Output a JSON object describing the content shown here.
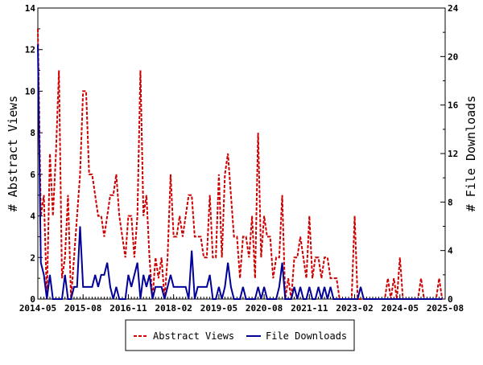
{
  "chart_data": {
    "type": "line",
    "title": "",
    "xlabel": "",
    "ylabel_left": "# Abstract Views",
    "ylabel_right": "# File Downloads",
    "x_range": [
      "2014-05",
      "2025-08"
    ],
    "x_ticks": [
      "2014-05",
      "2015-08",
      "2016-11",
      "2018-02",
      "2019-05",
      "2020-08",
      "2021-11",
      "2023-02",
      "2024-05",
      "2025-08"
    ],
    "y_left_range": [
      0,
      14
    ],
    "y_left_ticks": [
      0,
      2,
      4,
      6,
      8,
      10,
      12,
      14
    ],
    "y_right_range": [
      0,
      24
    ],
    "y_right_ticks": [
      0,
      4,
      8,
      12,
      16,
      20,
      24
    ],
    "grid": false,
    "legend_position": "bottom-center",
    "series": [
      {
        "name": "Abstract Views",
        "axis": "left",
        "color": "#cc0000",
        "style": "dashed",
        "points": [
          [
            "2014-05",
            13
          ],
          [
            "2014-06",
            4
          ],
          [
            "2014-07",
            5
          ],
          [
            "2014-08",
            0
          ],
          [
            "2014-09",
            7
          ],
          [
            "2014-10",
            4
          ],
          [
            "2014-11",
            7
          ],
          [
            "2014-12",
            11
          ],
          [
            "2015-01",
            1
          ],
          [
            "2015-02",
            2
          ],
          [
            "2015-03",
            5
          ],
          [
            "2015-04",
            0
          ],
          [
            "2015-05",
            2
          ],
          [
            "2015-06",
            4
          ],
          [
            "2015-07",
            6
          ],
          [
            "2015-08",
            10
          ],
          [
            "2015-09",
            10
          ],
          [
            "2015-10",
            6
          ],
          [
            "2015-11",
            6
          ],
          [
            "2015-12",
            5
          ],
          [
            "2016-01",
            4
          ],
          [
            "2016-02",
            4
          ],
          [
            "2016-03",
            3
          ],
          [
            "2016-04",
            4
          ],
          [
            "2016-05",
            5
          ],
          [
            "2016-06",
            5
          ],
          [
            "2016-07",
            6
          ],
          [
            "2016-08",
            4
          ],
          [
            "2016-09",
            3
          ],
          [
            "2016-10",
            2
          ],
          [
            "2016-11",
            4
          ],
          [
            "2016-12",
            4
          ],
          [
            "2017-01",
            2
          ],
          [
            "2017-02",
            4
          ],
          [
            "2017-03",
            11
          ],
          [
            "2017-04",
            4
          ],
          [
            "2017-05",
            5
          ],
          [
            "2017-06",
            2
          ],
          [
            "2017-07",
            0
          ],
          [
            "2017-08",
            2
          ],
          [
            "2017-09",
            1
          ],
          [
            "2017-10",
            2
          ],
          [
            "2017-11",
            0
          ],
          [
            "2017-12",
            2
          ],
          [
            "2018-01",
            6
          ],
          [
            "2018-02",
            3
          ],
          [
            "2018-03",
            3
          ],
          [
            "2018-04",
            4
          ],
          [
            "2018-05",
            3
          ],
          [
            "2018-06",
            4
          ],
          [
            "2018-07",
            5
          ],
          [
            "2018-08",
            5
          ],
          [
            "2018-09",
            3
          ],
          [
            "2018-10",
            3
          ],
          [
            "2018-11",
            3
          ],
          [
            "2018-12",
            2
          ],
          [
            "2019-01",
            2
          ],
          [
            "2019-02",
            5
          ],
          [
            "2019-03",
            2
          ],
          [
            "2019-04",
            2
          ],
          [
            "2019-05",
            6
          ],
          [
            "2019-06",
            2
          ],
          [
            "2019-07",
            6
          ],
          [
            "2019-08",
            7
          ],
          [
            "2019-09",
            5
          ],
          [
            "2019-10",
            3
          ],
          [
            "2019-11",
            3
          ],
          [
            "2019-12",
            1
          ],
          [
            "2020-01",
            3
          ],
          [
            "2020-02",
            3
          ],
          [
            "2020-03",
            2
          ],
          [
            "2020-04",
            4
          ],
          [
            "2020-05",
            1
          ],
          [
            "2020-06",
            8
          ],
          [
            "2020-07",
            2
          ],
          [
            "2020-08",
            4
          ],
          [
            "2020-09",
            3
          ],
          [
            "2020-10",
            3
          ],
          [
            "2020-11",
            1
          ],
          [
            "2020-12",
            2
          ],
          [
            "2021-01",
            2
          ],
          [
            "2021-02",
            5
          ],
          [
            "2021-03",
            0
          ],
          [
            "2021-04",
            1
          ],
          [
            "2021-05",
            0
          ],
          [
            "2021-06",
            2
          ],
          [
            "2021-07",
            2
          ],
          [
            "2021-08",
            3
          ],
          [
            "2021-09",
            2
          ],
          [
            "2021-10",
            1
          ],
          [
            "2021-11",
            4
          ],
          [
            "2021-12",
            1
          ],
          [
            "2022-01",
            2
          ],
          [
            "2022-02",
            2
          ],
          [
            "2022-03",
            1
          ],
          [
            "2022-04",
            2
          ],
          [
            "2022-05",
            2
          ],
          [
            "2022-06",
            1
          ],
          [
            "2022-07",
            1
          ],
          [
            "2022-08",
            1
          ],
          [
            "2022-09",
            0
          ],
          [
            "2022-10",
            0
          ],
          [
            "2022-11",
            0
          ],
          [
            "2022-12",
            0
          ],
          [
            "2023-01",
            0
          ],
          [
            "2023-02",
            4
          ],
          [
            "2023-03",
            0
          ],
          [
            "2023-04",
            0
          ],
          [
            "2023-05",
            0
          ],
          [
            "2023-06",
            0
          ],
          [
            "2023-07",
            0
          ],
          [
            "2023-08",
            0
          ],
          [
            "2023-09",
            0
          ],
          [
            "2023-10",
            0
          ],
          [
            "2023-11",
            0
          ],
          [
            "2023-12",
            0
          ],
          [
            "2024-01",
            1
          ],
          [
            "2024-02",
            0
          ],
          [
            "2024-03",
            1
          ],
          [
            "2024-04",
            0
          ],
          [
            "2024-05",
            2
          ],
          [
            "2024-06",
            0
          ],
          [
            "2024-07",
            0
          ],
          [
            "2024-08",
            0
          ],
          [
            "2024-09",
            0
          ],
          [
            "2024-10",
            0
          ],
          [
            "2024-11",
            0
          ],
          [
            "2024-12",
            1
          ],
          [
            "2025-01",
            0
          ],
          [
            "2025-02",
            0
          ],
          [
            "2025-03",
            0
          ],
          [
            "2025-04",
            0
          ],
          [
            "2025-05",
            0
          ],
          [
            "2025-06",
            1
          ],
          [
            "2025-07",
            0
          ]
        ]
      },
      {
        "name": "File Downloads",
        "axis": "right",
        "color": "#000099",
        "style": "solid",
        "points": [
          [
            "2014-05",
            21
          ],
          [
            "2014-06",
            3
          ],
          [
            "2014-07",
            2
          ],
          [
            "2014-08",
            0
          ],
          [
            "2014-09",
            2
          ],
          [
            "2014-10",
            0
          ],
          [
            "2014-11",
            0
          ],
          [
            "2014-12",
            0
          ],
          [
            "2015-01",
            0
          ],
          [
            "2015-02",
            2
          ],
          [
            "2015-03",
            0
          ],
          [
            "2015-04",
            0
          ],
          [
            "2015-05",
            1
          ],
          [
            "2015-06",
            1
          ],
          [
            "2015-07",
            6
          ],
          [
            "2015-08",
            1
          ],
          [
            "2015-09",
            1
          ],
          [
            "2015-10",
            1
          ],
          [
            "2015-11",
            1
          ],
          [
            "2015-12",
            2
          ],
          [
            "2016-01",
            1
          ],
          [
            "2016-02",
            2
          ],
          [
            "2016-03",
            2
          ],
          [
            "2016-04",
            3
          ],
          [
            "2016-05",
            1
          ],
          [
            "2016-06",
            0
          ],
          [
            "2016-07",
            1
          ],
          [
            "2016-08",
            0
          ],
          [
            "2016-09",
            0
          ],
          [
            "2016-10",
            0
          ],
          [
            "2016-11",
            2
          ],
          [
            "2016-12",
            1
          ],
          [
            "2017-01",
            2
          ],
          [
            "2017-02",
            3
          ],
          [
            "2017-03",
            0
          ],
          [
            "2017-04",
            2
          ],
          [
            "2017-05",
            1
          ],
          [
            "2017-06",
            2
          ],
          [
            "2017-07",
            0
          ],
          [
            "2017-08",
            1
          ],
          [
            "2017-09",
            1
          ],
          [
            "2017-10",
            1
          ],
          [
            "2017-11",
            0
          ],
          [
            "2017-12",
            1
          ],
          [
            "2018-01",
            2
          ],
          [
            "2018-02",
            1
          ],
          [
            "2018-03",
            1
          ],
          [
            "2018-04",
            1
          ],
          [
            "2018-05",
            1
          ],
          [
            "2018-06",
            1
          ],
          [
            "2018-07",
            0
          ],
          [
            "2018-08",
            4
          ],
          [
            "2018-09",
            0
          ],
          [
            "2018-10",
            1
          ],
          [
            "2018-11",
            1
          ],
          [
            "2018-12",
            1
          ],
          [
            "2019-01",
            1
          ],
          [
            "2019-02",
            2
          ],
          [
            "2019-03",
            0
          ],
          [
            "2019-04",
            0
          ],
          [
            "2019-05",
            1
          ],
          [
            "2019-06",
            0
          ],
          [
            "2019-07",
            1
          ],
          [
            "2019-08",
            3
          ],
          [
            "2019-09",
            1
          ],
          [
            "2019-10",
            0
          ],
          [
            "2019-11",
            0
          ],
          [
            "2019-12",
            0
          ],
          [
            "2020-01",
            1
          ],
          [
            "2020-02",
            0
          ],
          [
            "2020-03",
            0
          ],
          [
            "2020-04",
            0
          ],
          [
            "2020-05",
            0
          ],
          [
            "2020-06",
            1
          ],
          [
            "2020-07",
            0
          ],
          [
            "2020-08",
            1
          ],
          [
            "2020-09",
            0
          ],
          [
            "2020-10",
            0
          ],
          [
            "2020-11",
            0
          ],
          [
            "2020-12",
            0
          ],
          [
            "2021-01",
            1
          ],
          [
            "2021-02",
            3
          ],
          [
            "2021-03",
            0
          ],
          [
            "2021-04",
            0
          ],
          [
            "2021-05",
            0
          ],
          [
            "2021-06",
            1
          ],
          [
            "2021-07",
            0
          ],
          [
            "2021-08",
            1
          ],
          [
            "2021-09",
            0
          ],
          [
            "2021-10",
            0
          ],
          [
            "2021-11",
            1
          ],
          [
            "2021-12",
            0
          ],
          [
            "2022-01",
            0
          ],
          [
            "2022-02",
            1
          ],
          [
            "2022-03",
            0
          ],
          [
            "2022-04",
            1
          ],
          [
            "2022-05",
            0
          ],
          [
            "2022-06",
            1
          ],
          [
            "2022-07",
            0
          ],
          [
            "2022-08",
            0
          ],
          [
            "2022-09",
            0
          ],
          [
            "2022-10",
            0
          ],
          [
            "2022-11",
            0
          ],
          [
            "2022-12",
            0
          ],
          [
            "2023-01",
            0
          ],
          [
            "2023-02",
            0
          ],
          [
            "2023-03",
            0
          ],
          [
            "2023-04",
            1
          ],
          [
            "2023-05",
            0
          ],
          [
            "2023-06",
            0
          ],
          [
            "2023-07",
            0
          ],
          [
            "2023-08",
            0
          ],
          [
            "2023-09",
            0
          ],
          [
            "2023-10",
            0
          ],
          [
            "2023-11",
            0
          ],
          [
            "2023-12",
            0
          ],
          [
            "2024-01",
            0
          ],
          [
            "2024-02",
            0
          ],
          [
            "2024-03",
            0
          ],
          [
            "2024-04",
            0
          ],
          [
            "2024-05",
            0
          ],
          [
            "2024-06",
            0
          ],
          [
            "2024-07",
            0
          ],
          [
            "2024-08",
            0
          ],
          [
            "2024-09",
            0
          ],
          [
            "2024-10",
            0
          ],
          [
            "2024-11",
            0
          ],
          [
            "2024-12",
            0
          ],
          [
            "2025-01",
            0
          ],
          [
            "2025-02",
            0
          ],
          [
            "2025-03",
            0
          ],
          [
            "2025-04",
            0
          ],
          [
            "2025-05",
            0
          ],
          [
            "2025-06",
            0
          ],
          [
            "2025-07",
            0
          ]
        ]
      }
    ]
  }
}
